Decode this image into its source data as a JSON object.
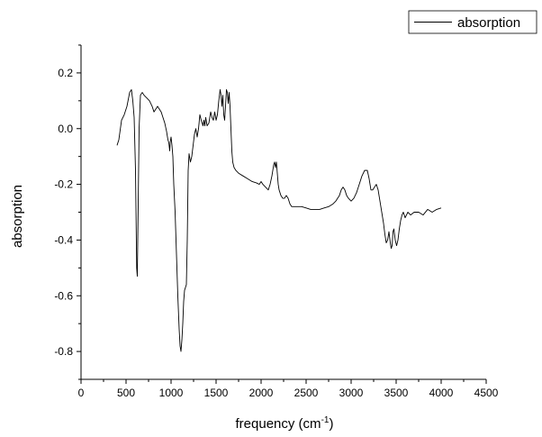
{
  "chart_data": {
    "type": "line",
    "title": "",
    "xlabel": "frequency (cm",
    "xlabel_sup": "-1",
    "xlabel_suffix": ")",
    "ylabel": "absorption",
    "xlim": [
      0,
      4500
    ],
    "ylim": [
      -0.9,
      0.3
    ],
    "x_ticks": [
      0,
      500,
      1000,
      1500,
      2000,
      2500,
      3000,
      3500,
      4000,
      4500
    ],
    "x_tick_labels": [
      "0",
      "500",
      "1000",
      "1500",
      "2000",
      "2500",
      "3000",
      "3500",
      "4000",
      "4500"
    ],
    "y_ticks": [
      -0.8,
      -0.6,
      -0.4,
      -0.2,
      0.0,
      0.2
    ],
    "y_tick_labels": [
      "-0.8",
      "-0.6",
      "-0.4",
      "-0.2",
      "0.0",
      "0.2"
    ],
    "grid": false,
    "legend_position": "top-right",
    "line_color": "#000000",
    "series": [
      {
        "name": "absorption",
        "x": [
          400,
          420,
          450,
          480,
          510,
          540,
          560,
          575,
          590,
          605,
          618,
          625,
          632,
          645,
          660,
          680,
          700,
          730,
          760,
          790,
          810,
          830,
          850,
          870,
          890,
          910,
          930,
          950,
          965,
          975,
          985,
          990,
          1000,
          1010,
          1020,
          1030,
          1045,
          1060,
          1075,
          1090,
          1100,
          1110,
          1120,
          1130,
          1140,
          1150,
          1160,
          1170,
          1180,
          1190,
          1200,
          1215,
          1230,
          1245,
          1260,
          1275,
          1290,
          1305,
          1320,
          1335,
          1345,
          1355,
          1365,
          1375,
          1385,
          1400,
          1420,
          1440,
          1455,
          1470,
          1485,
          1500,
          1515,
          1530,
          1545,
          1555,
          1565,
          1575,
          1585,
          1595,
          1605,
          1615,
          1625,
          1635,
          1645,
          1655,
          1665,
          1675,
          1685,
          1700,
          1720,
          1750,
          1800,
          1850,
          1900,
          1950,
          1980,
          2000,
          2020,
          2050,
          2080,
          2100,
          2120,
          2140,
          2150,
          2160,
          2170,
          2180,
          2190,
          2200,
          2210,
          2220,
          2240,
          2260,
          2280,
          2300,
          2320,
          2340,
          2360,
          2380,
          2400,
          2450,
          2500,
          2550,
          2600,
          2650,
          2700,
          2750,
          2800,
          2830,
          2850,
          2870,
          2890,
          2910,
          2930,
          2950,
          2970,
          3000,
          3030,
          3060,
          3090,
          3120,
          3150,
          3180,
          3200,
          3220,
          3240,
          3260,
          3280,
          3300,
          3315,
          3330,
          3345,
          3360,
          3375,
          3390,
          3405,
          3420,
          3435,
          3445,
          3455,
          3465,
          3475,
          3490,
          3505,
          3520,
          3535,
          3550,
          3565,
          3580,
          3600,
          3630,
          3660,
          3700,
          3750,
          3800,
          3850,
          3900,
          3950,
          4000
        ],
        "y": [
          -0.06,
          -0.04,
          0.03,
          0.05,
          0.08,
          0.13,
          0.14,
          0.1,
          0.04,
          -0.15,
          -0.5,
          -0.53,
          -0.35,
          0.0,
          0.12,
          0.13,
          0.12,
          0.11,
          0.1,
          0.08,
          0.06,
          0.07,
          0.08,
          0.07,
          0.06,
          0.04,
          0.02,
          -0.01,
          -0.04,
          -0.05,
          -0.08,
          -0.05,
          -0.03,
          -0.06,
          -0.1,
          -0.2,
          -0.3,
          -0.45,
          -0.6,
          -0.72,
          -0.78,
          -0.8,
          -0.76,
          -0.7,
          -0.62,
          -0.58,
          -0.57,
          -0.56,
          -0.4,
          -0.15,
          -0.09,
          -0.12,
          -0.1,
          -0.06,
          -0.02,
          0.0,
          -0.03,
          0.0,
          0.05,
          0.03,
          0.02,
          0.01,
          0.03,
          0.01,
          0.04,
          0.01,
          0.02,
          0.06,
          0.04,
          0.03,
          0.06,
          0.03,
          0.05,
          0.1,
          0.14,
          0.12,
          0.08,
          0.12,
          0.05,
          0.03,
          0.08,
          0.14,
          0.13,
          0.09,
          0.13,
          0.08,
          0.0,
          -0.08,
          -0.12,
          -0.14,
          -0.15,
          -0.16,
          -0.17,
          -0.18,
          -0.19,
          -0.195,
          -0.2,
          -0.19,
          -0.2,
          -0.21,
          -0.22,
          -0.2,
          -0.17,
          -0.13,
          -0.12,
          -0.14,
          -0.12,
          -0.16,
          -0.2,
          -0.22,
          -0.23,
          -0.24,
          -0.25,
          -0.25,
          -0.24,
          -0.25,
          -0.27,
          -0.28,
          -0.28,
          -0.28,
          -0.28,
          -0.28,
          -0.285,
          -0.29,
          -0.29,
          -0.29,
          -0.285,
          -0.28,
          -0.27,
          -0.26,
          -0.25,
          -0.24,
          -0.22,
          -0.21,
          -0.22,
          -0.24,
          -0.25,
          -0.26,
          -0.25,
          -0.23,
          -0.2,
          -0.17,
          -0.15,
          -0.15,
          -0.18,
          -0.22,
          -0.22,
          -0.21,
          -0.2,
          -0.22,
          -0.25,
          -0.28,
          -0.31,
          -0.34,
          -0.38,
          -0.41,
          -0.4,
          -0.37,
          -0.41,
          -0.43,
          -0.42,
          -0.37,
          -0.36,
          -0.4,
          -0.42,
          -0.4,
          -0.36,
          -0.33,
          -0.31,
          -0.3,
          -0.32,
          -0.3,
          -0.31,
          -0.3,
          -0.3,
          -0.31,
          -0.29,
          -0.3,
          -0.29,
          -0.285
        ]
      }
    ]
  }
}
